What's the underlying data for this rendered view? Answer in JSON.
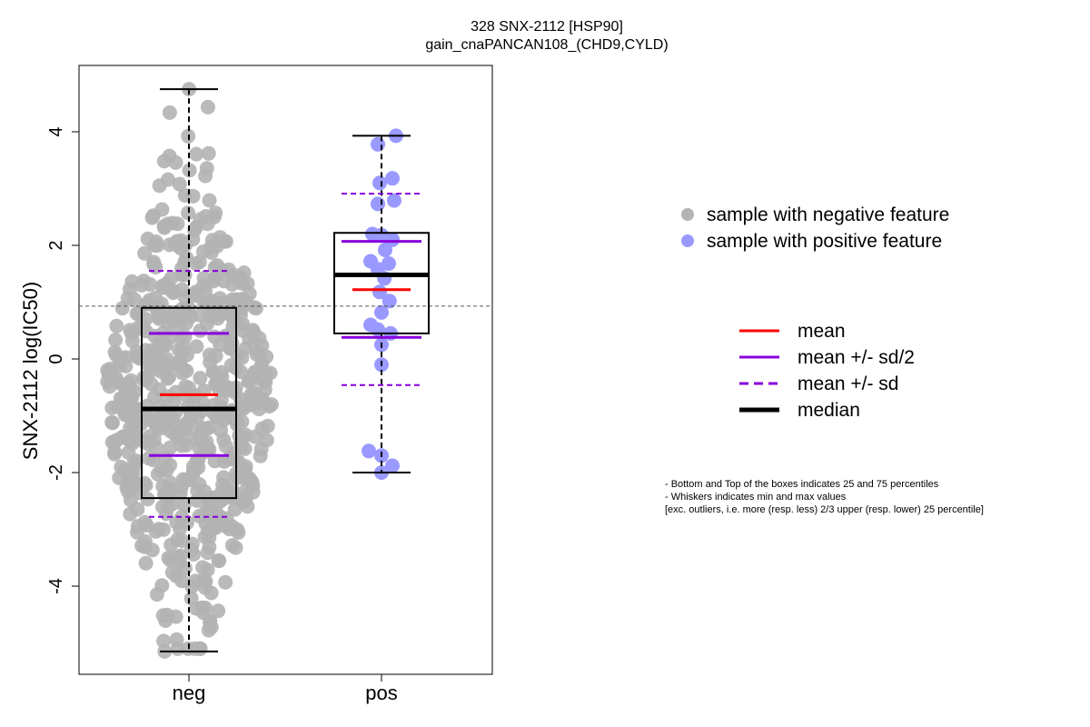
{
  "chart_data": {
    "type": "box",
    "title": "328 SNX-2112 [HSP90]",
    "subtitle": "gain_cnaPANCAN108_(CHD9,CYLD)",
    "xlabel": "",
    "ylabel": "SNX-2112 log(IC50)",
    "ylim": [
      -5.4,
      5.35
    ],
    "yticks": [
      -4,
      -2,
      0,
      2,
      4
    ],
    "categories": [
      "neg",
      "pos"
    ],
    "reference_line": 0.93,
    "colors": {
      "negative_points": "#b3b3b3",
      "positive_points": "#9999ff",
      "mean": "#ff0000",
      "sd": "#8800dd",
      "median": "#000000"
    },
    "groups": [
      {
        "name": "neg",
        "whisker_min": -5.15,
        "q1": -2.45,
        "median": -0.88,
        "q3": 0.9,
        "whisker_max": 4.75,
        "mean": -0.63,
        "mean_minus_half_sd": -1.7,
        "mean_plus_half_sd": 0.45,
        "mean_minus_sd": -2.78,
        "mean_plus_sd": 1.55,
        "n_points": 620
      },
      {
        "name": "pos",
        "whisker_min": -2.0,
        "q1": 0.45,
        "median": 1.48,
        "q3": 2.22,
        "whisker_max": 3.93,
        "mean": 1.22,
        "mean_minus_half_sd": 0.38,
        "mean_plus_half_sd": 2.07,
        "mean_minus_sd": -0.46,
        "mean_plus_sd": 2.91,
        "points": [
          [
            0.4,
            3.93
          ],
          [
            -0.1,
            3.78
          ],
          [
            0.3,
            3.18
          ],
          [
            -0.05,
            3.1
          ],
          [
            0.35,
            2.79
          ],
          [
            -0.1,
            2.73
          ],
          [
            -0.25,
            2.2
          ],
          [
            0.0,
            2.18
          ],
          [
            0.3,
            2.1
          ],
          [
            0.1,
            1.92
          ],
          [
            -0.3,
            1.72
          ],
          [
            0.2,
            1.68
          ],
          [
            -0.1,
            1.58
          ],
          [
            0.08,
            1.42
          ],
          [
            -0.05,
            1.18
          ],
          [
            0.22,
            1.02
          ],
          [
            0.0,
            0.82
          ],
          [
            -0.3,
            0.6
          ],
          [
            -0.1,
            0.52
          ],
          [
            0.25,
            0.45
          ],
          [
            0.0,
            0.25
          ],
          [
            0.0,
            -0.1
          ],
          [
            -0.35,
            -1.62
          ],
          [
            0.0,
            -1.7
          ],
          [
            0.3,
            -1.88
          ],
          [
            0.0,
            -2.0
          ]
        ]
      }
    ],
    "legend_points": [
      {
        "label": "sample with negative feature",
        "color": "#b3b3b3"
      },
      {
        "label": "sample with positive feature",
        "color": "#9999ff"
      }
    ],
    "legend_lines": [
      {
        "label": "mean",
        "color": "#ff0000",
        "style": "solid"
      },
      {
        "label": "mean +/- sd/2",
        "color": "#8800dd",
        "style": "solid"
      },
      {
        "label": "mean +/- sd",
        "color": "#8800dd",
        "style": "dashed"
      },
      {
        "label": "median",
        "color": "#000000",
        "style": "thick"
      }
    ],
    "notes": [
      "- Bottom and Top of the boxes indicates 25 and 75 percentiles",
      "- Whiskers indicates min and max values",
      "[exc. outliers, i.e. more (resp. less) 2/3 upper (resp. lower) 25 percentile]"
    ]
  }
}
